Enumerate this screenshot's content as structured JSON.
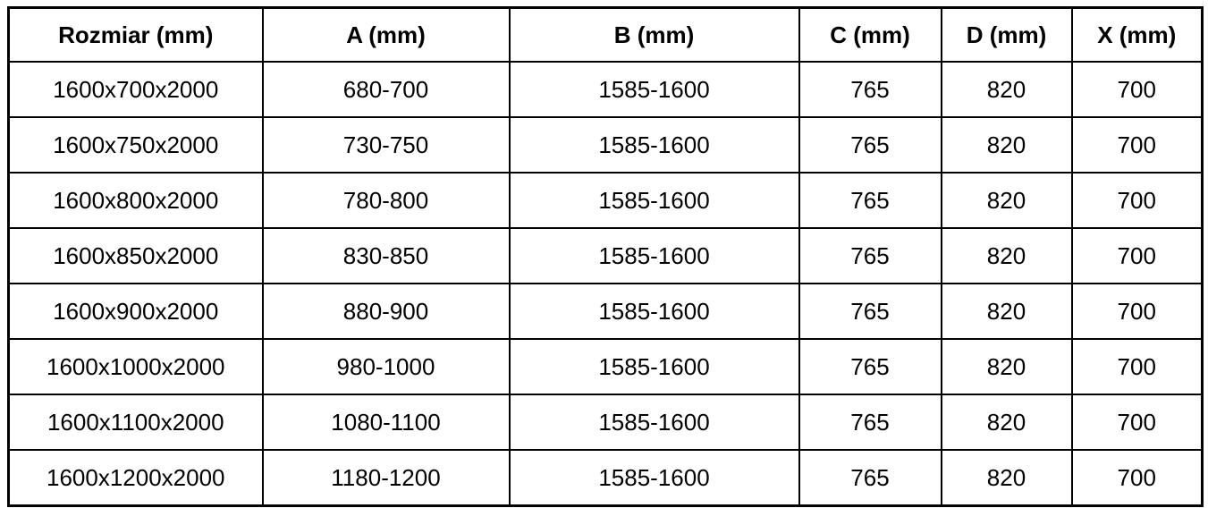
{
  "colors": {
    "border": "#000000",
    "background": "#ffffff",
    "text": "#000000"
  },
  "table": {
    "columns": [
      "Rozmiar (mm)",
      "A (mm)",
      "B (mm)",
      "C (mm)",
      "D (mm)",
      "X (mm)"
    ],
    "rows": [
      [
        "1600x700x2000",
        "680-700",
        "1585-1600",
        "765",
        "820",
        "700"
      ],
      [
        "1600x750x2000",
        "730-750",
        "1585-1600",
        "765",
        "820",
        "700"
      ],
      [
        "1600x800x2000",
        "780-800",
        "1585-1600",
        "765",
        "820",
        "700"
      ],
      [
        "1600x850x2000",
        "830-850",
        "1585-1600",
        "765",
        "820",
        "700"
      ],
      [
        "1600x900x2000",
        "880-900",
        "1585-1600",
        "765",
        "820",
        "700"
      ],
      [
        "1600x1000x2000",
        "980-1000",
        "1585-1600",
        "765",
        "820",
        "700"
      ],
      [
        "1600x1100x2000",
        "1080-1100",
        "1585-1600",
        "765",
        "820",
        "700"
      ],
      [
        "1600x1200x2000",
        "1180-1200",
        "1585-1600",
        "765",
        "820",
        "700"
      ]
    ]
  }
}
